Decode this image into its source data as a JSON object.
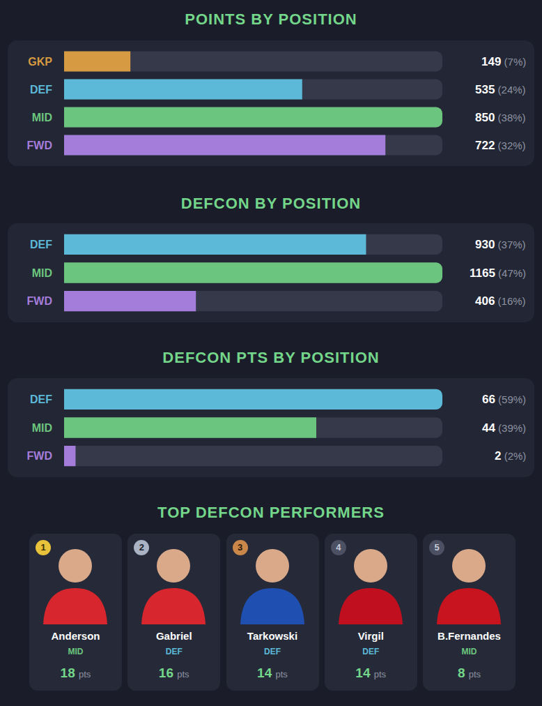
{
  "chart_data": [
    {
      "type": "bar",
      "orientation": "horizontal",
      "title": "POINTS BY POSITION",
      "categories": [
        "GKP",
        "DEF",
        "MID",
        "FWD"
      ],
      "values": [
        149,
        535,
        850,
        722
      ],
      "value_labels": [
        "149 (7%)",
        "535 (24%)",
        "850 (38%)",
        "722 (32%)"
      ],
      "colors": [
        "#d69a42",
        "#5cbad8",
        "#6cc57e",
        "#a47ddb"
      ],
      "xlim": [
        0,
        850
      ],
      "tick_labels": "y",
      "grid": false,
      "data_labels": true
    },
    {
      "type": "bar",
      "orientation": "horizontal",
      "title": "DEFCON BY POSITION",
      "categories": [
        "DEF",
        "MID",
        "FWD"
      ],
      "values": [
        930,
        1165,
        406
      ],
      "value_labels": [
        "930 (37%)",
        "1165 (47%)",
        "406 (16%)"
      ],
      "colors": [
        "#5cbad8",
        "#6cc57e",
        "#a47ddb"
      ],
      "xlim": [
        0,
        1165
      ],
      "tick_labels": "y",
      "grid": false,
      "data_labels": true
    },
    {
      "type": "bar",
      "orientation": "horizontal",
      "title": "DEFCON PTS BY POSITION",
      "categories": [
        "DEF",
        "MID",
        "FWD"
      ],
      "values": [
        66,
        44,
        2
      ],
      "value_labels": [
        "66 (59%)",
        "44 (39%)",
        "2 (2%)"
      ],
      "colors": [
        "#5cbad8",
        "#6cc57e",
        "#a47ddb"
      ],
      "xlim": [
        0,
        66
      ],
      "tick_labels": "y",
      "grid": false,
      "data_labels": true
    }
  ],
  "top_performers": {
    "title": "TOP DEFCON PERFORMERS",
    "unit": "pts",
    "players": [
      {
        "rank": 1,
        "name": "Anderson",
        "position": "MID",
        "points": 18
      },
      {
        "rank": 2,
        "name": "Gabriel",
        "position": "DEF",
        "points": 16
      },
      {
        "rank": 3,
        "name": "Tarkowski",
        "position": "DEF",
        "points": 14
      },
      {
        "rank": 4,
        "name": "Virgil",
        "position": "DEF",
        "points": 14
      },
      {
        "rank": 5,
        "name": "B.Fernandes",
        "position": "MID",
        "points": 8
      }
    ]
  }
}
